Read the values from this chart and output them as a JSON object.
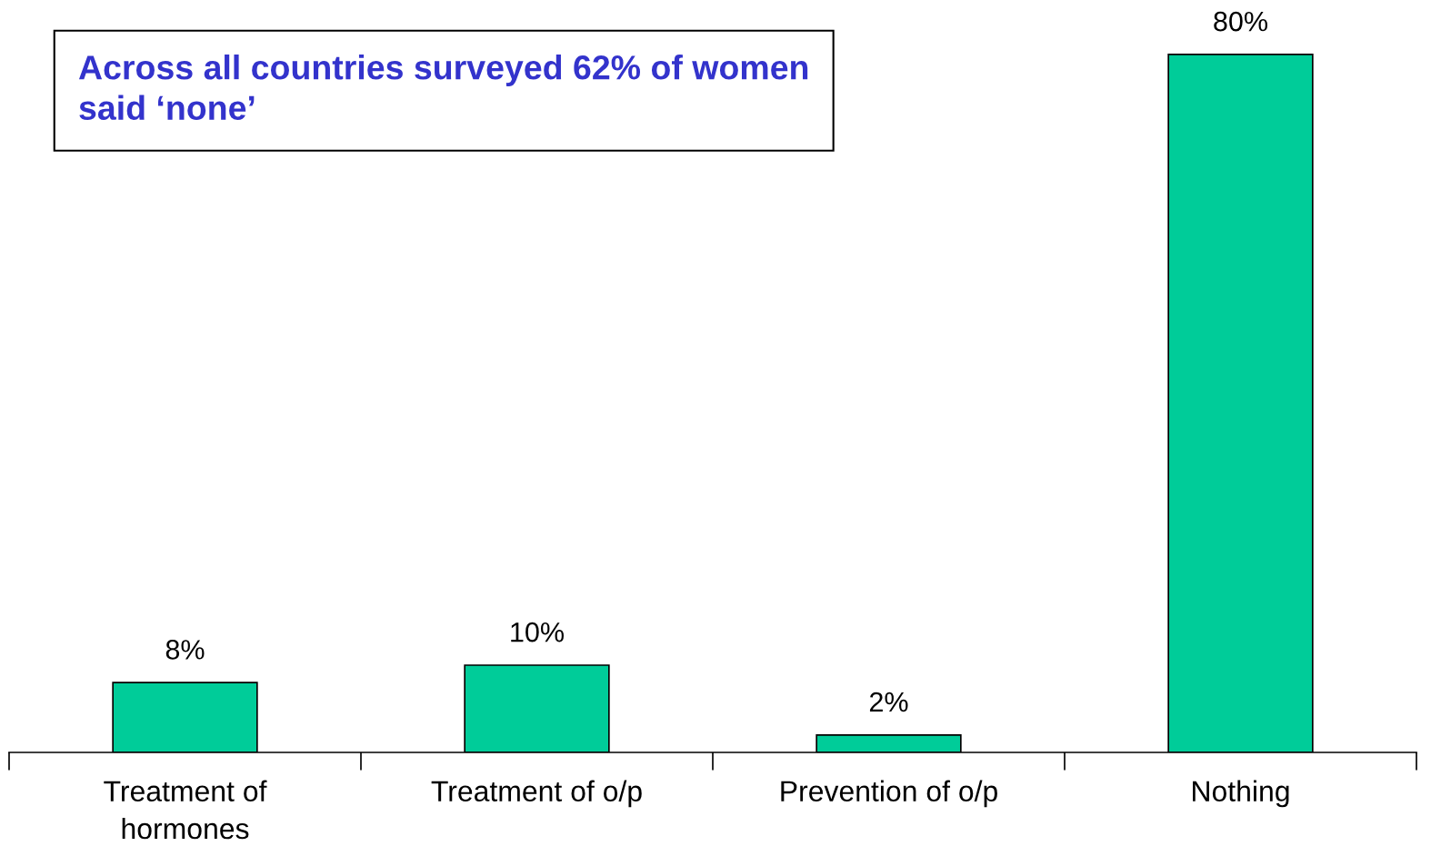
{
  "chart_data": {
    "type": "bar",
    "categories": [
      "Treatment of\nhormones",
      "Treatment of o/p",
      "Prevention of o/p",
      "Nothing"
    ],
    "values": [
      8,
      10,
      2,
      80
    ],
    "value_labels": [
      "8%",
      "10%",
      "2%",
      "80%"
    ],
    "color": "#00cc99",
    "annotations": [
      "Across all countries surveyed 62% of women\nsaid ‘none’"
    ],
    "grid": false,
    "legend": false
  }
}
